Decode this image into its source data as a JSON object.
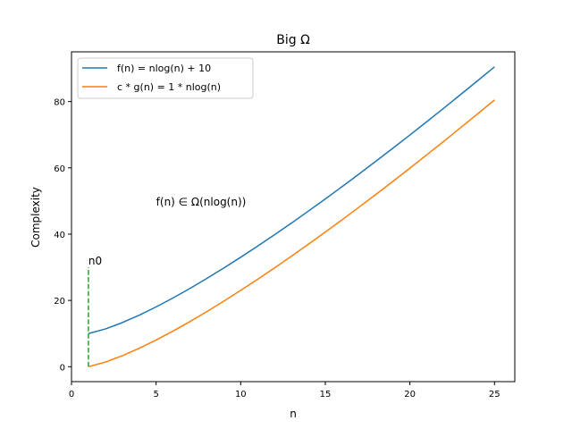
{
  "chart_data": {
    "type": "line",
    "title": "Big Ω",
    "xlabel": "n",
    "ylabel": "Complexity",
    "xlim": [
      0.0,
      26.2
    ],
    "ylim": [
      -4.5,
      95.0
    ],
    "xticks": [
      0,
      5,
      10,
      15,
      20,
      25
    ],
    "xtick_labels": [
      "0",
      "5",
      "10",
      "15",
      "20",
      "25"
    ],
    "yticks": [
      0,
      20,
      40,
      60,
      80
    ],
    "ytick_labels": [
      "0",
      "20",
      "40",
      "60",
      "80"
    ],
    "grid": false,
    "legend_position": "upper left",
    "x": [
      1,
      2,
      3,
      4,
      5,
      6,
      7,
      8,
      9,
      10,
      11,
      12,
      13,
      14,
      15,
      16,
      17,
      18,
      19,
      20,
      21,
      22,
      23,
      24,
      25
    ],
    "series": [
      {
        "name": "f(n) = nlog(n) + 10",
        "color": "#1f77b4",
        "values": [
          10.0,
          11.39,
          13.3,
          15.55,
          18.05,
          20.75,
          23.62,
          26.64,
          29.78,
          33.03,
          36.38,
          39.82,
          43.34,
          46.95,
          50.62,
          54.36,
          58.16,
          62.03,
          65.94,
          69.91,
          73.94,
          78.0,
          82.12,
          86.27,
          90.47
        ]
      },
      {
        "name": "c * g(n) = 1 * nlog(n)",
        "color": "#ff7f0e",
        "values": [
          0.0,
          1.39,
          3.3,
          5.55,
          8.05,
          10.75,
          13.62,
          16.64,
          19.78,
          23.03,
          26.38,
          29.82,
          33.34,
          36.95,
          40.62,
          44.36,
          48.16,
          52.03,
          55.94,
          59.91,
          63.94,
          68.0,
          72.12,
          76.27,
          80.47
        ]
      }
    ],
    "n0_marker": {
      "label": "n0",
      "x": 1,
      "y_from": 0,
      "y_to": 30,
      "color": "#2ca02c",
      "style": "dashed"
    },
    "annotation": {
      "text": "f(n) ∈ Ω(nlog(n))",
      "x": 5,
      "y": 50
    }
  }
}
